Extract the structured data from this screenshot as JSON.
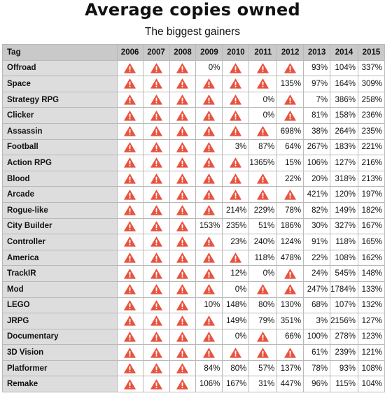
{
  "title": "Average copies owned",
  "subtitle": "The biggest gainers",
  "chart_data": {
    "type": "table",
    "columns": [
      "Tag",
      "2006",
      "2007",
      "2008",
      "2009",
      "2010",
      "2011",
      "2012",
      "2013",
      "2014",
      "2015"
    ],
    "rows": [
      {
        "tag": "Offroad",
        "values": [
          "!",
          "!",
          "!",
          "0%",
          "!",
          "!",
          "!",
          "93%",
          "104%",
          "337%"
        ]
      },
      {
        "tag": "Space",
        "values": [
          "!",
          "!",
          "!",
          "!",
          "!",
          "!",
          "135%",
          "97%",
          "164%",
          "309%"
        ]
      },
      {
        "tag": "Strategy RPG",
        "values": [
          "!",
          "!",
          "!",
          "!",
          "!",
          "0%",
          "!",
          "7%",
          "386%",
          "258%"
        ]
      },
      {
        "tag": "Clicker",
        "values": [
          "!",
          "!",
          "!",
          "!",
          "!",
          "0%",
          "!",
          "81%",
          "158%",
          "236%"
        ]
      },
      {
        "tag": "Assassin",
        "values": [
          "!",
          "!",
          "!",
          "!",
          "!",
          "!",
          "698%",
          "38%",
          "264%",
          "235%"
        ]
      },
      {
        "tag": "Football",
        "values": [
          "!",
          "!",
          "!",
          "!",
          "3%",
          "87%",
          "64%",
          "267%",
          "183%",
          "221%"
        ]
      },
      {
        "tag": "Action RPG",
        "values": [
          "!",
          "!",
          "!",
          "!",
          "!",
          "1365%",
          "15%",
          "106%",
          "127%",
          "216%"
        ]
      },
      {
        "tag": "Blood",
        "values": [
          "!",
          "!",
          "!",
          "!",
          "!",
          "!",
          "22%",
          "20%",
          "318%",
          "213%"
        ]
      },
      {
        "tag": "Arcade",
        "values": [
          "!",
          "!",
          "!",
          "!",
          "!",
          "!",
          "!",
          "421%",
          "120%",
          "197%"
        ]
      },
      {
        "tag": "Rogue-like",
        "values": [
          "!",
          "!",
          "!",
          "!",
          "214%",
          "229%",
          "78%",
          "82%",
          "149%",
          "182%"
        ]
      },
      {
        "tag": "City Builder",
        "values": [
          "!",
          "!",
          "!",
          "153%",
          "235%",
          "51%",
          "186%",
          "30%",
          "327%",
          "167%"
        ]
      },
      {
        "tag": "Controller",
        "values": [
          "!",
          "!",
          "!",
          "!",
          "23%",
          "240%",
          "124%",
          "91%",
          "118%",
          "165%"
        ]
      },
      {
        "tag": "America",
        "values": [
          "!",
          "!",
          "!",
          "!",
          "!",
          "118%",
          "478%",
          "22%",
          "108%",
          "162%"
        ]
      },
      {
        "tag": "TrackIR",
        "values": [
          "!",
          "!",
          "!",
          "!",
          "12%",
          "0%",
          "!",
          "24%",
          "545%",
          "148%"
        ]
      },
      {
        "tag": "Mod",
        "values": [
          "!",
          "!",
          "!",
          "!",
          "0%",
          "!",
          "!",
          "247%",
          "1784%",
          "133%"
        ]
      },
      {
        "tag": "LEGO",
        "values": [
          "!",
          "!",
          "!",
          "10%",
          "148%",
          "80%",
          "130%",
          "68%",
          "107%",
          "132%"
        ]
      },
      {
        "tag": "JRPG",
        "values": [
          "!",
          "!",
          "!",
          "!",
          "149%",
          "79%",
          "351%",
          "3%",
          "2156%",
          "127%"
        ]
      },
      {
        "tag": "Documentary",
        "values": [
          "!",
          "!",
          "!",
          "!",
          "0%",
          "!",
          "66%",
          "100%",
          "278%",
          "123%"
        ]
      },
      {
        "tag": "3D Vision",
        "values": [
          "!",
          "!",
          "!",
          "!",
          "!",
          "!",
          "!",
          "61%",
          "239%",
          "121%"
        ]
      },
      {
        "tag": "Platformer",
        "values": [
          "!",
          "!",
          "!",
          "84%",
          "80%",
          "57%",
          "137%",
          "78%",
          "93%",
          "108%"
        ]
      },
      {
        "tag": "Remake",
        "values": [
          "!",
          "!",
          "!",
          "106%",
          "167%",
          "31%",
          "447%",
          "96%",
          "115%",
          "104%"
        ]
      }
    ],
    "warning_marker": "!",
    "warning_icon": "warning-triangle-icon",
    "colors": {
      "warning": "#e8533f",
      "header_bg": "#c9c9c9",
      "tag_bg": "#dddddd",
      "border": "#b9b9b9"
    }
  }
}
